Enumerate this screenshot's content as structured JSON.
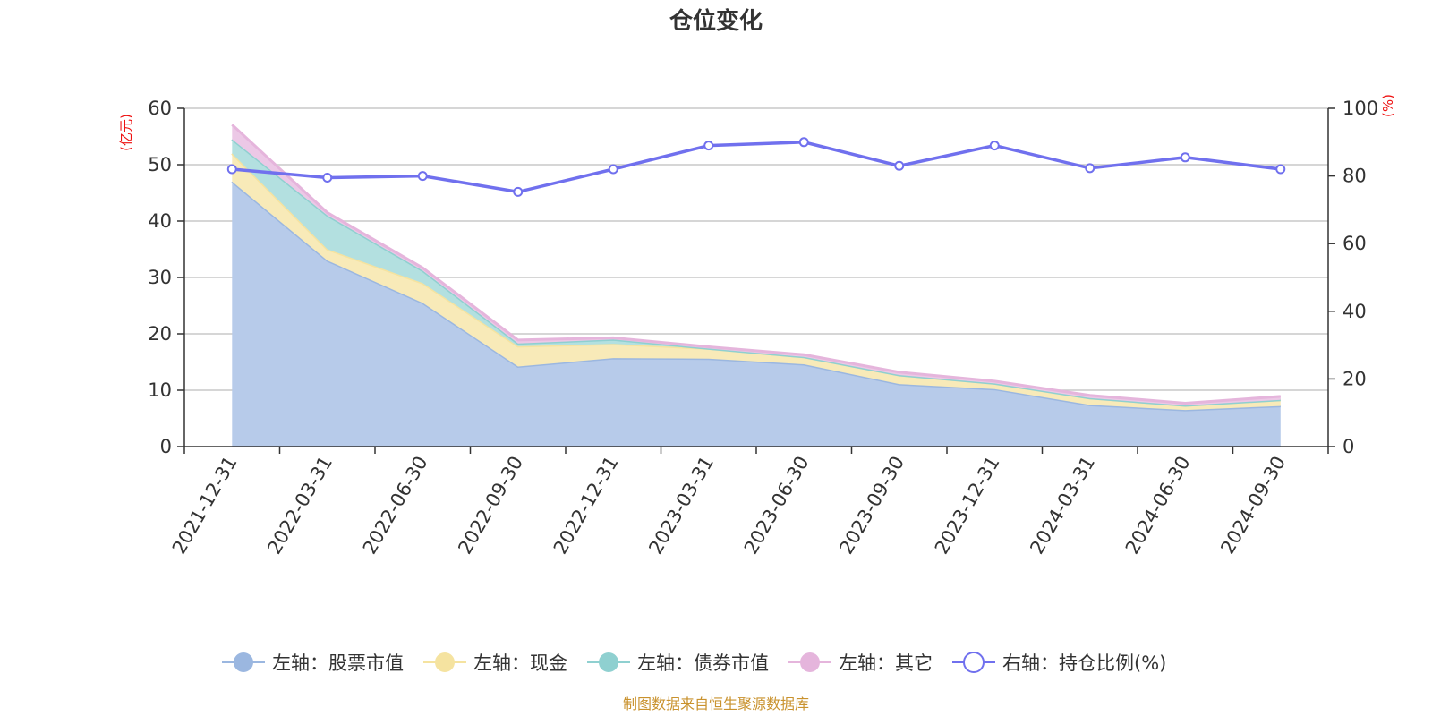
{
  "chart_data": {
    "type": "area",
    "title": "仓位变化",
    "categories": [
      "2021-12-31",
      "2022-03-31",
      "2022-06-30",
      "2022-09-30",
      "2022-12-31",
      "2023-03-31",
      "2023-06-30",
      "2023-09-30",
      "2023-12-31",
      "2024-03-31",
      "2024-06-30",
      "2024-09-30"
    ],
    "left_axis": {
      "unit": "(亿元)",
      "ylim": [
        0,
        60
      ],
      "ticks": [
        0,
        10,
        20,
        30,
        40,
        50,
        60
      ]
    },
    "right_axis": {
      "unit": "(%)",
      "ylim": [
        0,
        100
      ],
      "ticks": [
        0,
        20,
        40,
        60,
        80,
        100
      ]
    },
    "series": [
      {
        "name": "左轴：股票市值",
        "axis": "left",
        "stacked": true,
        "color": "#9bb7e0",
        "fill": "#b7cbea",
        "values": [
          47.0,
          33.0,
          25.5,
          14.2,
          15.7,
          15.6,
          14.6,
          11.1,
          10.2,
          7.4,
          6.5,
          7.2
        ]
      },
      {
        "name": "左轴：现金",
        "axis": "left",
        "stacked": true,
        "color": "#f5e3a0",
        "fill": "#f8eab8",
        "values": [
          5.0,
          2.0,
          3.5,
          3.6,
          2.5,
          1.8,
          1.3,
          1.6,
          1.0,
          1.2,
          0.8,
          1.1
        ]
      },
      {
        "name": "左轴：债券市值",
        "axis": "left",
        "stacked": true,
        "color": "#8fd0d0",
        "fill": "#b3e0e0",
        "values": [
          2.5,
          6.0,
          2.2,
          0.5,
          0.8,
          0,
          0,
          0,
          0,
          0,
          0,
          0
        ]
      },
      {
        "name": "左轴：其它",
        "axis": "left",
        "stacked": true,
        "color": "#e5b5dc",
        "fill": "#ecc8e6",
        "values": [
          2.6,
          0.5,
          0.5,
          0.6,
          0.3,
          0.3,
          0.4,
          0.5,
          0.4,
          0.5,
          0.4,
          0.6
        ]
      },
      {
        "name": "右轴：持仓比例(%)",
        "axis": "right",
        "type": "line",
        "color": "#7070ee",
        "values": [
          82.0,
          79.5,
          80.0,
          75.3,
          82.0,
          89.0,
          90.0,
          83.0,
          89.0,
          82.3,
          85.5,
          82.0
        ]
      }
    ],
    "legend_position": "bottom",
    "grid": true
  },
  "footer": "制图数据来自恒生聚源数据库"
}
